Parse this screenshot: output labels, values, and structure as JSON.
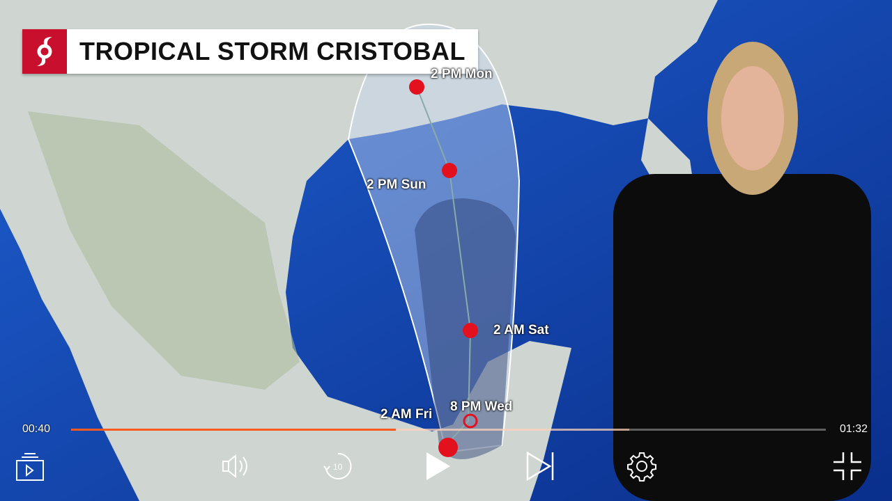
{
  "video": {
    "banner_title": "TROPICAL STORM CRISTOBAL",
    "track_labels": [
      "2 PM Mon",
      "2 PM Sun",
      "2 AM Sat",
      "8 PM Wed",
      "2 AM Fri"
    ]
  },
  "player": {
    "current_time": "00:40",
    "duration": "01:32",
    "progress_fraction": 0.43,
    "buffered_fraction": 0.74,
    "accent_color": "#ff5a1f",
    "controls": [
      {
        "name": "playlist",
        "icon": "playlist-play-icon"
      },
      {
        "name": "volume",
        "icon": "volume-icon"
      },
      {
        "name": "rewind-10",
        "icon": "replay-10-icon"
      },
      {
        "name": "play",
        "icon": "play-icon"
      },
      {
        "name": "next",
        "icon": "skip-next-icon"
      },
      {
        "name": "settings",
        "icon": "gear-icon"
      },
      {
        "name": "exit-fullscreen",
        "icon": "exit-fullscreen-icon"
      }
    ]
  }
}
